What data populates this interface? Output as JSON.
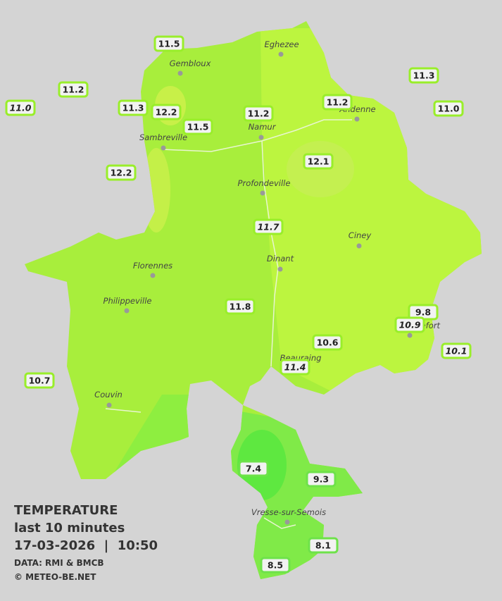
{
  "legend": {
    "title": "TEMPERATURE",
    "period": "last 10 minutes",
    "timestamp": "17-03-2026  |  10:50",
    "source": "DATA: RMI & BMCB",
    "copyright": "© METEO-BE.NET"
  },
  "cities": [
    "Eghezee",
    "Gembloux",
    "Andenne",
    "Namur",
    "Sambreville",
    "Profondeville",
    "Ciney",
    "Dinant",
    "Florennes",
    "Philippeville",
    "Rochefort",
    "Beauraing",
    "Couvin",
    "Vresse-sur-Semois"
  ],
  "stations": [
    {
      "label": "11.5"
    },
    {
      "label": "11.2"
    },
    {
      "label": "11.0",
      "italic": true
    },
    {
      "label": "11.3"
    },
    {
      "label": "12.2"
    },
    {
      "label": "11.5"
    },
    {
      "label": "11.2"
    },
    {
      "label": "11.2"
    },
    {
      "label": "11.3"
    },
    {
      "label": "11.0"
    },
    {
      "label": "12.1"
    },
    {
      "label": "12.2"
    },
    {
      "label": "11.7",
      "italic": true
    },
    {
      "label": "11.8"
    },
    {
      "label": "9.8"
    },
    {
      "label": "10.9",
      "italic": true
    },
    {
      "label": "10.6"
    },
    {
      "label": "11.4",
      "italic": true
    },
    {
      "label": "10.1",
      "italic": true
    },
    {
      "label": "10.7"
    },
    {
      "label": "7.4"
    },
    {
      "label": "9.3"
    },
    {
      "label": "8.1"
    },
    {
      "label": "8.5"
    }
  ]
}
